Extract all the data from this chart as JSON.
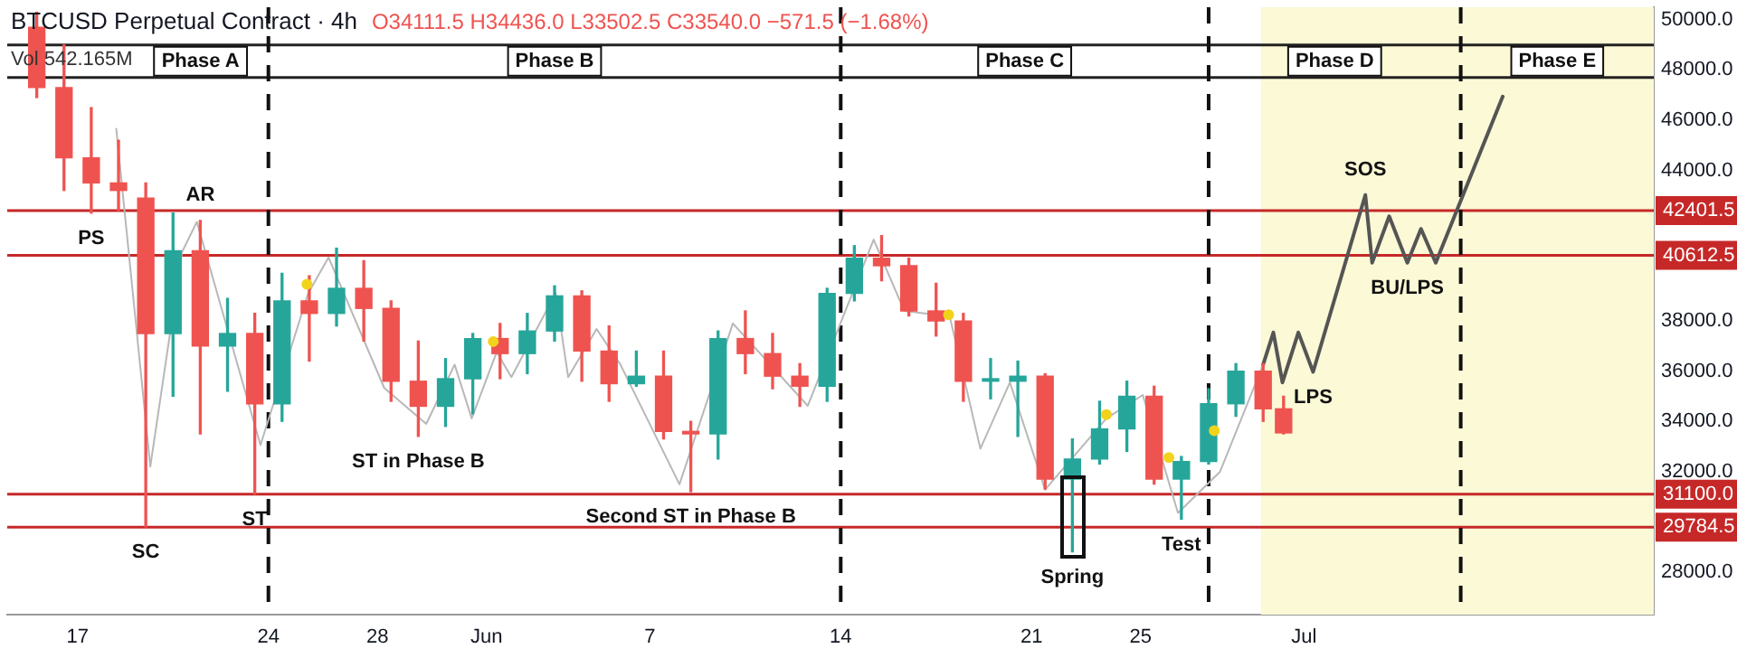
{
  "chart_data": {
    "type": "candlestick",
    "title": "BTCUSD Perpetual Contract · 4h",
    "x": [
      "--05-15T12:00",
      "--05-16T12:00",
      "--05-17T12:00",
      "--05-18T12:00",
      "--05-19T12:00",
      "--05-20T12:00",
      "--05-21T12:00",
      "--05-22T12:00",
      "--05-23T12:00",
      "--05-24T12:00",
      "--05-25T12:00",
      "--05-26T12:00",
      "--05-27T12:00",
      "--05-28T12:00",
      "--05-29T12:00",
      "--05-30T12:00",
      "--05-31T12:00",
      "--06-01T12:00",
      "--06-02T12:00",
      "--06-03T12:00",
      "--06-04T12:00",
      "--06-05T12:00",
      "--06-06T12:00",
      "--06-07T12:00",
      "--06-08T12:00",
      "--06-09T12:00",
      "--06-10T12:00",
      "--06-11T12:00",
      "--06-12T12:00",
      "--06-13T12:00",
      "--06-14T12:00",
      "--06-15T12:00",
      "--06-16T12:00",
      "--06-17T12:00",
      "--06-18T12:00",
      "--06-19T12:00",
      "--06-20T12:00",
      "--06-21T12:00",
      "--06-22T12:00",
      "--06-23T12:00",
      "--06-24T12:00",
      "--06-25T12:00",
      "--06-26T12:00",
      "--06-27T12:00",
      "--06-28T12:00",
      "--06-29T12:00",
      "--06-30T06:00"
    ],
    "ohlc": [
      [
        49700,
        50300,
        46900,
        47300
      ],
      [
        47300,
        49000,
        43200,
        44500
      ],
      [
        44500,
        46500,
        42300,
        43500
      ],
      [
        43500,
        45200,
        42400,
        43200
      ],
      [
        42900,
        43500,
        29800,
        37500
      ],
      [
        37500,
        42300,
        35000,
        40800
      ],
      [
        40800,
        42000,
        33500,
        37000
      ],
      [
        37000,
        38900,
        35200,
        37500
      ],
      [
        37500,
        38300,
        31100,
        34700
      ],
      [
        34700,
        39900,
        34000,
        38800
      ],
      [
        38800,
        39800,
        36400,
        38300
      ],
      [
        38300,
        40900,
        37800,
        39300
      ],
      [
        39300,
        40400,
        37200,
        38500
      ],
      [
        38500,
        38800,
        34800,
        35600
      ],
      [
        35600,
        37200,
        33400,
        34600
      ],
      [
        34600,
        36500,
        33800,
        35700
      ],
      [
        35700,
        37500,
        34300,
        37300
      ],
      [
        37300,
        37900,
        35700,
        36700
      ],
      [
        36700,
        38300,
        35900,
        37600
      ],
      [
        37600,
        39400,
        37200,
        39000
      ],
      [
        39000,
        39200,
        35600,
        36800
      ],
      [
        36800,
        37800,
        34800,
        35500
      ],
      [
        35500,
        36800,
        35400,
        35800
      ],
      [
        35800,
        36800,
        33300,
        33600
      ],
      [
        33600,
        34000,
        31200,
        33500
      ],
      [
        33500,
        37600,
        32500,
        37300
      ],
      [
        37300,
        38400,
        35900,
        36700
      ],
      [
        36700,
        37500,
        35300,
        35800
      ],
      [
        35800,
        36300,
        34600,
        35400
      ],
      [
        35400,
        39300,
        34800,
        39100
      ],
      [
        39100,
        41000,
        38800,
        40500
      ],
      [
        40500,
        41400,
        39600,
        40200
      ],
      [
        40200,
        40500,
        38200,
        38400
      ],
      [
        38400,
        39500,
        37400,
        38000
      ],
      [
        38000,
        38300,
        34800,
        35600
      ],
      [
        35600,
        36500,
        34900,
        35700
      ],
      [
        35600,
        36400,
        33400,
        35800
      ],
      [
        35800,
        35900,
        31300,
        31700
      ],
      [
        31700,
        33300,
        28800,
        32500
      ],
      [
        32500,
        34800,
        32300,
        33700
      ],
      [
        33700,
        35600,
        32800,
        35000
      ],
      [
        35000,
        35400,
        31500,
        31700
      ],
      [
        31700,
        32600,
        30100,
        32400
      ],
      [
        32400,
        35300,
        32300,
        34700
      ],
      [
        34700,
        36300,
        34200,
        36000
      ],
      [
        36000,
        36300,
        34000,
        34500
      ],
      [
        34500,
        35000,
        33500,
        33540
      ]
    ],
    "colors": [
      "#ef5350",
      "#ef5350",
      "#ef5350",
      "#ef5350",
      "#ef5350",
      "#26a69a",
      "#ef5350",
      "#26a69a",
      "#ef5350",
      "#26a69a",
      "#ef5350",
      "#26a69a",
      "#ef5350",
      "#ef5350",
      "#ef5350",
      "#26a69a",
      "#26a69a",
      "#ef5350",
      "#26a69a",
      "#26a69a",
      "#ef5350",
      "#ef5350",
      "#26a69a",
      "#ef5350",
      "#ef5350",
      "#26a69a",
      "#ef5350",
      "#ef5350",
      "#ef5350",
      "#26a69a",
      "#26a69a",
      "#ef5350",
      "#ef5350",
      "#ef5350",
      "#ef5350",
      "#26a69a",
      "#26a69a",
      "#ef5350",
      "#26a69a",
      "#26a69a",
      "#26a69a",
      "#ef5350",
      "#26a69a",
      "#26a69a",
      "#26a69a",
      "#ef5350",
      "#ef5350"
    ],
    "series": [
      {
        "type": "line",
        "color": "#b8b8b8",
        "marker": "none",
        "x": [
          "--05-18T10:00",
          "--05-19T16:00",
          "--05-20T20:00",
          "--05-21T09:00",
          "--05-23T17:00",
          "--05-24T09:00",
          "--05-25T11:00",
          "--05-26T05:00",
          "--05-28T06:00",
          "--05-29T19:00",
          "--05-30T20:00",
          "--05-31T11:00",
          "--06-01T09:00",
          "--06-01T22:00",
          "--06-03T13:00",
          "--06-04T00:00",
          "--06-05T01:00",
          "--06-05T22:00",
          "--06-08T02:00",
          "--06-10T01:00",
          "--06-12T19:00",
          "--06-14T14:00",
          "--06-15T05:00",
          "--06-16T08:00",
          "--06-18T00:00",
          "--06-19T03:00",
          "--06-20T05:00",
          "--06-21T12:00",
          "--06-23T18:00",
          "--06-25T02:00",
          "--06-26T09:00",
          "--06-27T22:00",
          "--06-29T12:00"
        ],
        "values": [
          45660,
          32200,
          40750,
          41950,
          33050,
          null,
          39100,
          40530,
          35330,
          33900,
          36260,
          34120,
          36760,
          35760,
          39110,
          35760,
          37680,
          36260,
          31490,
          37900,
          34620,
          null,
          41240,
          38400,
          38180,
          32910,
          35550,
          31280,
          34120,
          35050,
          30350,
          31990,
          36260
        ]
      },
      {
        "type": "line",
        "color": "#555555",
        "marker": "none",
        "x": [
          "--06-29T12:00",
          "--06-29T21:00",
          "--06-30T05:00",
          "--06-30T19:00",
          "--07-01T08:00",
          "--07-03T06:00",
          "--07-03T12:00",
          "--07-04T03:00",
          "--07-04T19:00",
          "--07-05T07:00",
          "--07-05T20:00",
          "--07-08T07:00"
        ],
        "values": [
          36260,
          37540,
          35550,
          37540,
          35970,
          43020,
          40320,
          42170,
          40320,
          41670,
          40320,
          46940
        ]
      },
      {
        "type": "scatter",
        "color": "#f2d31b",
        "marker": "circle",
        "x": [
          "--05-25T10:00",
          "--06-01T06:00",
          "--06-17T23:00",
          "--06-23T18:00",
          "--06-26T01:00",
          "--06-27T17:00"
        ],
        "values": [
          39460,
          37180,
          38250,
          34270,
          32560,
          33630
        ]
      }
    ],
    "xlim": [
      "--05-14T10:00",
      "--07-13T20:00"
    ],
    "xticks": [
      {
        "value": "--05-17",
        "label": "17"
      },
      {
        "value": "--05-24",
        "label": "24"
      },
      {
        "value": "--05-28",
        "label": "28"
      },
      {
        "value": "--06-01",
        "label": "Jun"
      },
      {
        "value": "--06-07",
        "label": "7"
      },
      {
        "value": "--06-14",
        "label": "14"
      },
      {
        "value": "--06-21",
        "label": "21"
      },
      {
        "value": "--06-25",
        "label": "25"
      },
      {
        "value": "--07-01",
        "label": "Jul"
      }
    ],
    "ylim": [
      26300,
      50500
    ],
    "yticks": [
      {
        "value": 28000,
        "label": "28000.0"
      },
      {
        "value": 32000,
        "label": "32000.0"
      },
      {
        "value": 34000,
        "label": "34000.0"
      },
      {
        "value": 36000,
        "label": "36000.0"
      },
      {
        "value": 38000,
        "label": "38000.0"
      },
      {
        "value": 44000,
        "label": "44000.0"
      },
      {
        "value": 46000,
        "label": "46000.0"
      },
      {
        "value": 48000,
        "label": "48000.0"
      },
      {
        "value": 50000,
        "label": "50000.0"
      }
    ],
    "ref_lines": [
      {
        "axis": "y",
        "value": 42401.5,
        "label": "42401.5",
        "color": "#c62828"
      },
      {
        "axis": "y",
        "value": 40612.5,
        "label": "40612.5",
        "color": "#c62828"
      },
      {
        "axis": "y",
        "value": 31100,
        "label": "31100.0",
        "color": "#c62828"
      },
      {
        "axis": "y",
        "value": 29784.5,
        "label": "29784.5",
        "color": "#c62828"
      },
      {
        "axis": "y",
        "value": 49000,
        "color": "#222222"
      },
      {
        "axis": "y",
        "value": 47700,
        "color": "#222222"
      },
      {
        "axis": "x",
        "value": "--05-24",
        "color": "#111111",
        "line_style": "dashed"
      },
      {
        "axis": "x",
        "value": "--06-14",
        "color": "#111111",
        "line_style": "dashed"
      },
      {
        "axis": "x",
        "value": "--06-27T12:00",
        "color": "#111111",
        "line_style": "dashed"
      },
      {
        "axis": "x",
        "value": "--07-06T18:00",
        "color": "#111111",
        "line_style": "dashed"
      }
    ],
    "bands": [
      {
        "axis": "x",
        "from": "--06-29T10:00",
        "to": "--07-13T20:00",
        "color": "#fbf9d6"
      }
    ],
    "annotations": [
      "O34111.5 H34436.0 L33502.5 C33540.0 −571.5 (−1.68%)",
      "Vol 542.165M",
      "Phase A",
      "Phase B",
      "Phase C",
      "Phase D",
      "Phase E",
      {
        "text": "PS",
        "x": "--05-17T12:00",
        "y": 42300
      },
      {
        "text": "AR",
        "x": "--05-21T12:00",
        "y": 42000
      },
      {
        "text": "SC",
        "x": "--05-19T12:00",
        "y": 29800
      },
      {
        "text": "ST",
        "x": "--05-23T12:00",
        "y": 31100
      },
      {
        "text": "ST in Phase B",
        "x": "--05-29T12:00",
        "y": 33400
      },
      {
        "text": "Second ST in Phase B",
        "x": "--06-08T12:00",
        "y": 31200
      },
      {
        "text": "Spring",
        "x": "--06-22T12:00",
        "y": 28800
      },
      {
        "text": "Test",
        "x": "--06-26T12:00",
        "y": 30100
      },
      {
        "text": "SOS",
        "x": "--07-03T06:00",
        "y": 43020
      },
      {
        "text": "BU/LPS",
        "x": "--07-04T19:00",
        "y": 40320
      },
      {
        "text": "LPS",
        "x": "--07-01T08:00",
        "y": 35970
      }
    ]
  }
}
